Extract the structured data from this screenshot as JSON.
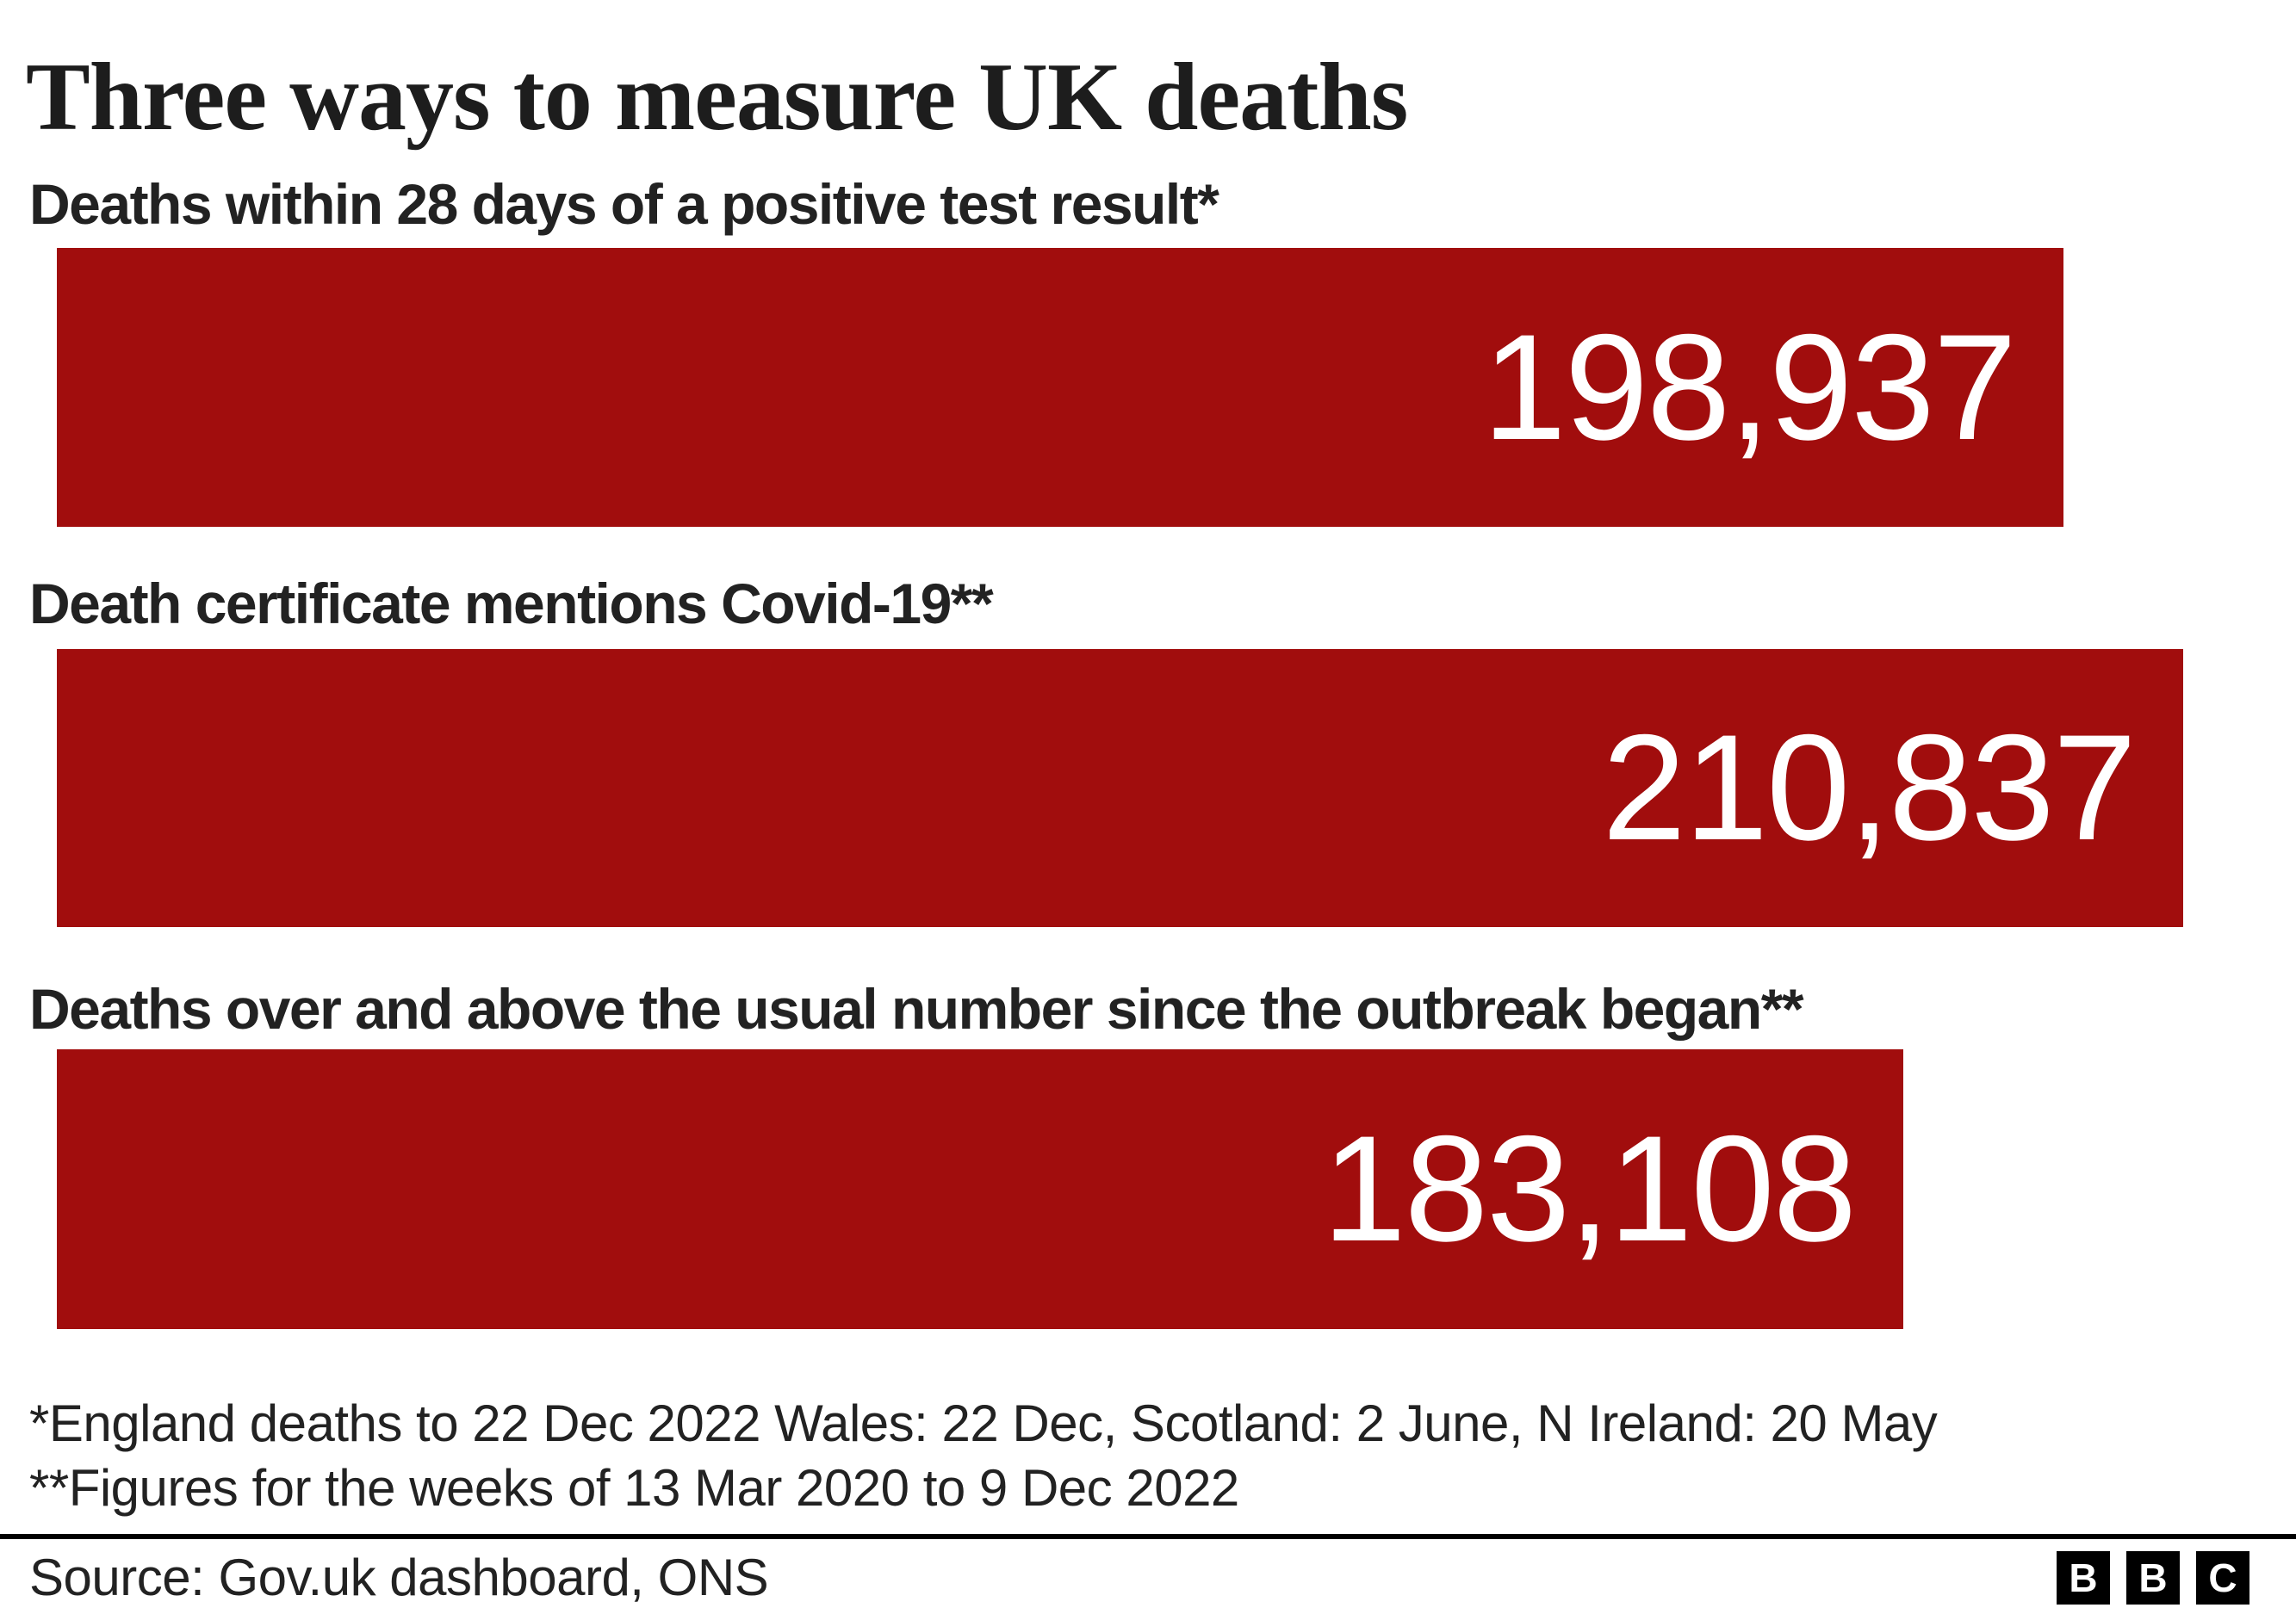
{
  "header": {
    "title": "Three ways to measure UK deaths"
  },
  "chart_data": {
    "type": "bar",
    "orientation": "horizontal",
    "title": "Three ways to measure UK deaths",
    "categories": [
      "Deaths within 28 days of a positive test result*",
      "Death certificate mentions Covid-19**",
      "Deaths over and above the usual number since the outbreak began**"
    ],
    "values": [
      198937,
      210837,
      183108
    ],
    "value_labels": [
      "198,937",
      "210,837",
      "183,108"
    ],
    "xlim": [
      0,
      210837
    ],
    "grid": false,
    "legend": "none",
    "bar_color": "#a10d0d",
    "value_label_color": "#ffffff",
    "label_color": "#222222"
  },
  "footnotes": {
    "line1": "*England deaths to 22 Dec 2022 Wales: 22 Dec, Scotland: 2 June, N Ireland: 20 May",
    "line2": "**Figures for the weeks of 13 Mar 2020 to 9 Dec 2022"
  },
  "footer": {
    "source": "Source: Gov.uk dashboard, ONS"
  },
  "logo": {
    "name": "BBC",
    "letters": [
      "B",
      "B",
      "C"
    ],
    "bg_color": "#000000",
    "fg_color": "#ffffff"
  }
}
